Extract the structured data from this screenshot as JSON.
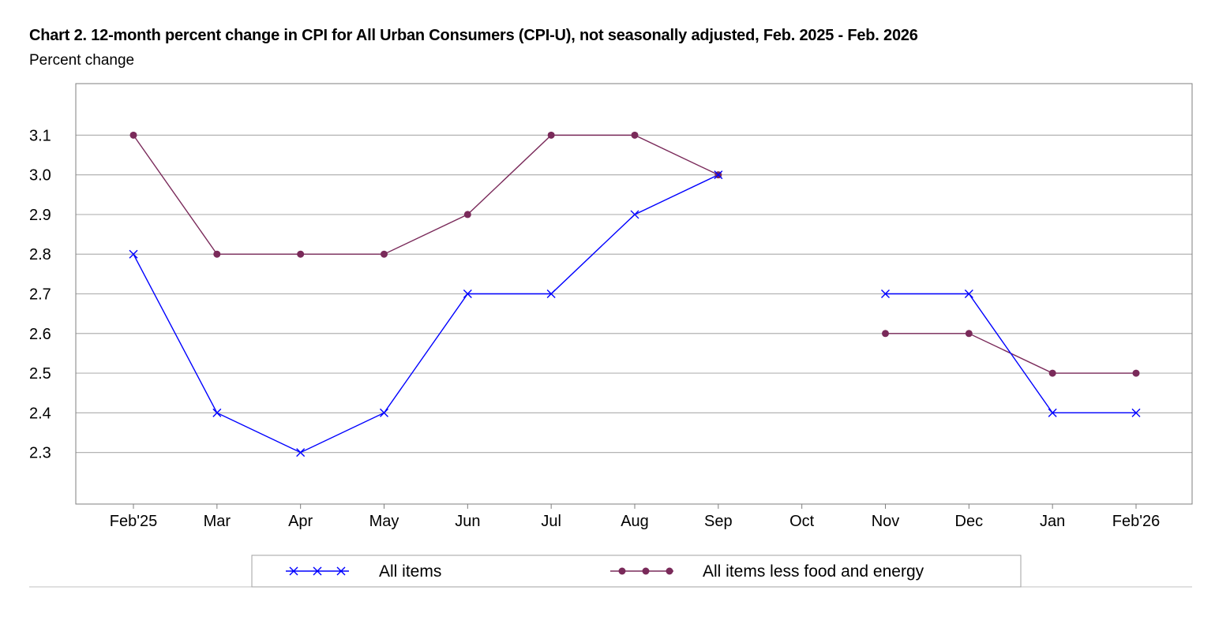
{
  "chart_data": {
    "type": "line",
    "title": "Chart 2. 12-month percent change in CPI for All Urban Consumers (CPI-U), not seasonally adjusted, Feb. 2025 - Feb. 2026",
    "ylabel": "Percent change",
    "xlabel": "",
    "categories": [
      "Feb'25",
      "Mar",
      "Apr",
      "May",
      "Jun",
      "Jul",
      "Aug",
      "Sep",
      "Oct",
      "Nov",
      "Dec",
      "Jan",
      "Feb'26"
    ],
    "yticks": [
      "3.1",
      "3.0",
      "2.9",
      "2.8",
      "2.7",
      "2.6",
      "2.5",
      "2.4",
      "2.3"
    ],
    "ylim": [
      2.17,
      3.23
    ],
    "grid": true,
    "legend_position": "bottom",
    "series": [
      {
        "name": "All items",
        "color": "#0000ff",
        "marker": "x",
        "values": [
          2.8,
          2.4,
          2.3,
          2.4,
          2.7,
          2.7,
          2.9,
          3.0,
          null,
          2.7,
          2.7,
          2.4,
          2.4
        ]
      },
      {
        "name": "All items less food and energy",
        "color": "#7a2a5a",
        "marker": "circle",
        "values": [
          3.1,
          2.8,
          2.8,
          2.8,
          2.9,
          3.1,
          3.1,
          3.0,
          null,
          2.6,
          2.6,
          2.5,
          2.5
        ]
      }
    ]
  }
}
